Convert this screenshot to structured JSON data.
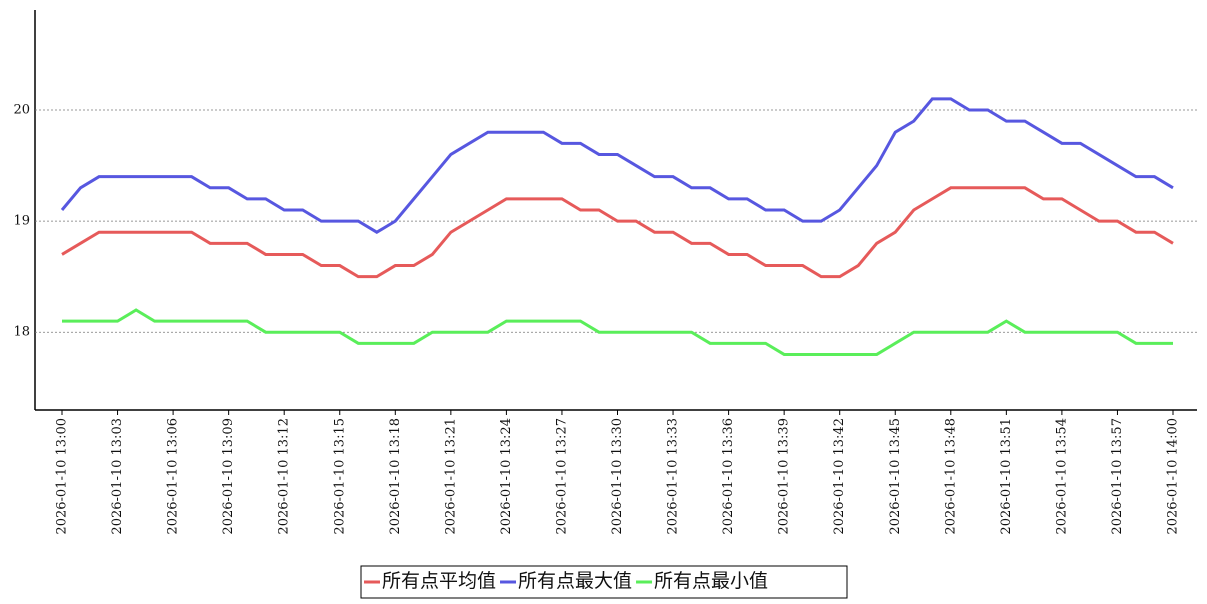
{
  "chart_data": {
    "type": "line",
    "categories": [
      "2026-01-10 13:00",
      null,
      null,
      "2026-01-10 13:03",
      null,
      null,
      "2026-01-10 13:06",
      null,
      null,
      "2026-01-10 13:09",
      null,
      null,
      "2026-01-10 13:12",
      null,
      null,
      "2026-01-10 13:15",
      null,
      null,
      "2026-01-10 13:18",
      null,
      null,
      "2026-01-10 13:21",
      null,
      null,
      "2026-01-10 13:24",
      null,
      null,
      "2026-01-10 13:27",
      null,
      null,
      "2026-01-10 13:30",
      null,
      null,
      "2026-01-10 13:33",
      null,
      null,
      "2026-01-10 13:36",
      null,
      null,
      "2026-01-10 13:39",
      null,
      null,
      "2026-01-10 13:42",
      null,
      null,
      "2026-01-10 13:45",
      null,
      null,
      "2026-01-10 13:48",
      null,
      null,
      "2026-01-10 13:51",
      null,
      null,
      "2026-01-10 13:54",
      null,
      null,
      "2026-01-10 13:57",
      null,
      null,
      "2026-01-10 14:00"
    ],
    "series": [
      {
        "name": "所有点平均值",
        "color": "#e65a5a",
        "values": [
          18.7,
          18.8,
          18.9,
          18.9,
          18.9,
          18.9,
          18.9,
          18.9,
          18.8,
          18.8,
          18.8,
          18.7,
          18.7,
          18.7,
          18.6,
          18.6,
          18.5,
          18.5,
          18.6,
          18.6,
          18.7,
          18.9,
          19.0,
          19.1,
          19.2,
          19.2,
          19.2,
          19.2,
          19.1,
          19.1,
          19.0,
          19.0,
          18.9,
          18.9,
          18.8,
          18.8,
          18.7,
          18.7,
          18.6,
          18.6,
          18.6,
          18.5,
          18.5,
          18.6,
          18.8,
          18.9,
          19.1,
          19.2,
          19.3,
          19.3,
          19.3,
          19.3,
          19.3,
          19.2,
          19.2,
          19.1,
          19.0,
          19.0,
          18.9,
          18.9,
          18.8
        ]
      },
      {
        "name": "所有点最大值",
        "color": "#5757e0",
        "values": [
          19.1,
          19.3,
          19.4,
          19.4,
          19.4,
          19.4,
          19.4,
          19.4,
          19.3,
          19.3,
          19.2,
          19.2,
          19.1,
          19.1,
          19.0,
          19.0,
          19.0,
          18.9,
          19.0,
          19.2,
          19.4,
          19.6,
          19.7,
          19.8,
          19.8,
          19.8,
          19.8,
          19.7,
          19.7,
          19.6,
          19.6,
          19.5,
          19.4,
          19.4,
          19.3,
          19.3,
          19.2,
          19.2,
          19.1,
          19.1,
          19.0,
          19.0,
          19.1,
          19.3,
          19.5,
          19.8,
          19.9,
          20.1,
          20.1,
          20.0,
          20.0,
          19.9,
          19.9,
          19.8,
          19.7,
          19.7,
          19.6,
          19.5,
          19.4,
          19.4,
          19.3
        ]
      },
      {
        "name": "所有点最小值",
        "color": "#5aee5a",
        "values": [
          18.1,
          18.1,
          18.1,
          18.1,
          18.2,
          18.1,
          18.1,
          18.1,
          18.1,
          18.1,
          18.1,
          18.0,
          18.0,
          18.0,
          18.0,
          18.0,
          17.9,
          17.9,
          17.9,
          17.9,
          18.0,
          18.0,
          18.0,
          18.0,
          18.1,
          18.1,
          18.1,
          18.1,
          18.1,
          18.0,
          18.0,
          18.0,
          18.0,
          18.0,
          18.0,
          17.9,
          17.9,
          17.9,
          17.9,
          17.8,
          17.8,
          17.8,
          17.8,
          17.8,
          17.8,
          17.9,
          18.0,
          18.0,
          18.0,
          18.0,
          18.0,
          18.1,
          18.0,
          18.0,
          18.0,
          18.0,
          18.0,
          18.0,
          17.9,
          17.9,
          17.9
        ]
      }
    ],
    "ylim": [
      17.3,
      20.9
    ],
    "yticks": [
      18,
      19,
      20
    ],
    "grid": true,
    "legend": "bottom"
  }
}
